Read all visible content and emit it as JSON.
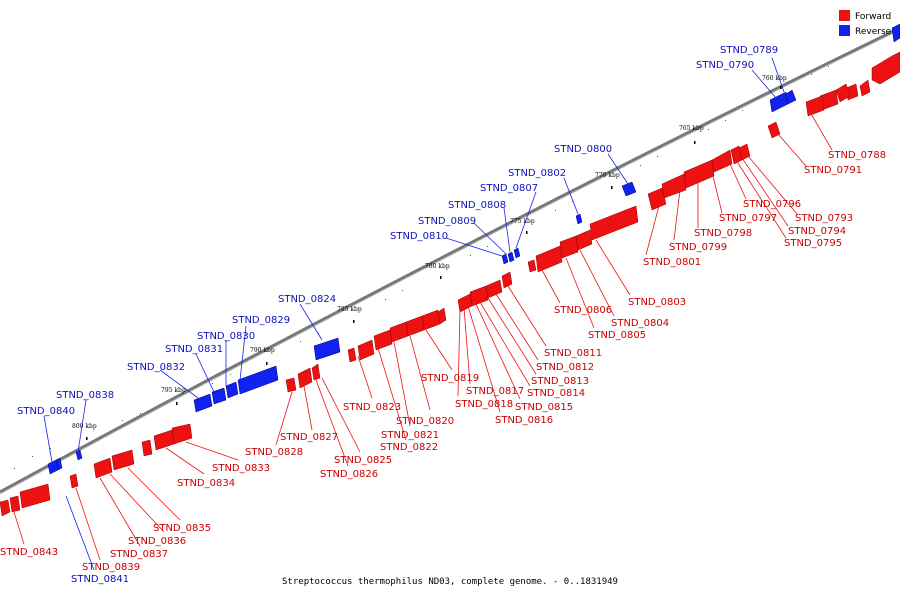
{
  "caption": "Streptococcus thermophilus ND03, complete genome. - 0..1831949",
  "colors": {
    "forward": "#ee1111",
    "reverse": "#1122ee",
    "backbone": "#777777",
    "forward_label": "#cc0000",
    "reverse_label": "#1010c0"
  },
  "legend": [
    {
      "label": "Forward",
      "strand": "forward"
    },
    {
      "label": "Reverse",
      "strand": "reverse"
    }
  ],
  "ticks": [
    {
      "label": "760 kbp"
    },
    {
      "label": "765 kbp"
    },
    {
      "label": "770 kbp"
    },
    {
      "label": "775 kbp"
    },
    {
      "label": "780 kbp"
    },
    {
      "label": "785 kbp"
    },
    {
      "label": "790 kbp"
    },
    {
      "label": "795 kbp"
    },
    {
      "label": "800 kbp"
    }
  ],
  "forward_genes": [
    "STND_0788",
    "STND_0791",
    "STND_0793",
    "STND_0794",
    "STND_0795",
    "STND_0796",
    "STND_0797",
    "STND_0798",
    "STND_0799",
    "STND_0801",
    "STND_0803",
    "STND_0804",
    "STND_0805",
    "STND_0806",
    "STND_0811",
    "STND_0812",
    "STND_0813",
    "STND_0814",
    "STND_0815",
    "STND_0816",
    "STND_0817",
    "STND_0818",
    "STND_0819",
    "STND_0820",
    "STND_0821",
    "STND_0822",
    "STND_0823",
    "STND_0825",
    "STND_0826",
    "STND_0827",
    "STND_0828",
    "STND_0833",
    "STND_0834",
    "STND_0835",
    "STND_0836",
    "STND_0837",
    "STND_0839",
    "STND_0843"
  ],
  "reverse_genes": [
    "STND_0789",
    "STND_0790",
    "STND_0800",
    "STND_0802",
    "STND_0807",
    "STND_0808",
    "STND_0809",
    "STND_0810",
    "STND_0824",
    "STND_0829",
    "STND_0830",
    "STND_0831",
    "STND_0832",
    "STND_0838",
    "STND_0840",
    "STND_0841"
  ]
}
